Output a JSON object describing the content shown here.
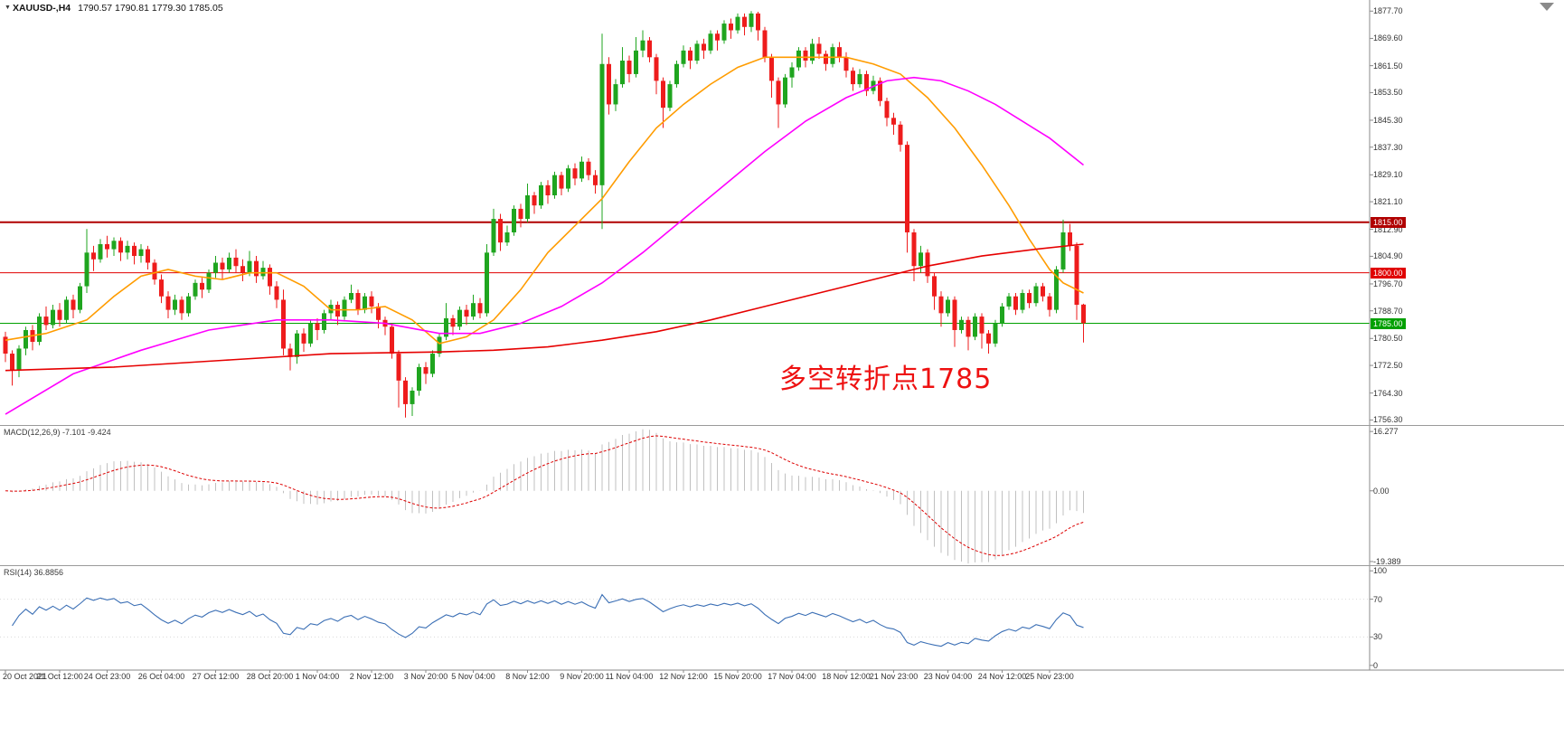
{
  "header": {
    "symbol": "XAUUSD-,H4",
    "quote": "1790.57 1790.81 1779.30 1785.05"
  },
  "chart_data": {
    "type": "candlestick",
    "symbol": "XAUUSD-",
    "timeframe": "H4",
    "last_quote": {
      "open": 1790.57,
      "high": 1790.81,
      "low": 1779.3,
      "close": 1785.05
    },
    "colors": {
      "up": "#1fa51f",
      "down": "#ee1c1c",
      "background": "#ffffff",
      "axis": "#808080"
    },
    "price_axis": {
      "range": [
        1754.8,
        1881.0
      ],
      "ticks": [
        "1877.70",
        "1869.60",
        "1861.50",
        "1853.50",
        "1845.30",
        "1837.30",
        "1829.10",
        "1821.10",
        "1812.90",
        "1804.90",
        "1796.70",
        "1788.70",
        "1780.50",
        "1772.50",
        "1764.30",
        "1756.30"
      ]
    },
    "time_axis": {
      "labels": [
        "20 Oct 2021",
        "21 Oct 12:00",
        "24 Oct 23:00",
        "26 Oct 04:00",
        "27 Oct 12:00",
        "28 Oct 20:00",
        "1 Nov 04:00",
        "2 Nov 12:00",
        "3 Nov 20:00",
        "5 Nov 04:00",
        "8 Nov 12:00",
        "9 Nov 20:00",
        "11 Nov 04:00",
        "12 Nov 12:00",
        "15 Nov 20:00",
        "17 Nov 04:00",
        "18 Nov 12:00",
        "21 Nov 23:00",
        "23 Nov 04:00",
        "24 Nov 12:00",
        "25 Nov 23:00"
      ],
      "indices": [
        0,
        8,
        15,
        23,
        31,
        39,
        46,
        54,
        62,
        69,
        77,
        85,
        92,
        100,
        108,
        116,
        124,
        131,
        139,
        147,
        154
      ]
    },
    "hlines": [
      {
        "price": 1815.0,
        "label": "1815.00",
        "color": "#b00000",
        "width": 2
      },
      {
        "price": 1800.0,
        "label": "1800.00",
        "color": "#e00000",
        "width": 1
      },
      {
        "price": 1785.0,
        "label": "1785.00",
        "color": "#00a000",
        "width": 1
      }
    ],
    "annotation": {
      "text": "多空转折点1785",
      "color": "#ee1111"
    },
    "moving_averages": [
      {
        "name": "ma-fast-orange",
        "color": "#ff9c00",
        "points": [
          [
            0,
            1780
          ],
          [
            6,
            1782
          ],
          [
            12,
            1786
          ],
          [
            16,
            1793
          ],
          [
            20,
            1799
          ],
          [
            24,
            1801
          ],
          [
            28,
            1799
          ],
          [
            32,
            1798
          ],
          [
            36,
            1800
          ],
          [
            40,
            1800
          ],
          [
            44,
            1796
          ],
          [
            48,
            1789
          ],
          [
            52,
            1789
          ],
          [
            56,
            1790
          ],
          [
            60,
            1786
          ],
          [
            64,
            1779
          ],
          [
            68,
            1781
          ],
          [
            72,
            1786
          ],
          [
            76,
            1795
          ],
          [
            80,
            1806
          ],
          [
            84,
            1814
          ],
          [
            88,
            1822
          ],
          [
            92,
            1833
          ],
          [
            96,
            1843
          ],
          [
            100,
            1850
          ],
          [
            104,
            1856
          ],
          [
            108,
            1861
          ],
          [
            112,
            1864
          ],
          [
            120,
            1864
          ],
          [
            124,
            1864
          ],
          [
            128,
            1862
          ],
          [
            132,
            1859
          ],
          [
            136,
            1852
          ],
          [
            140,
            1843
          ],
          [
            144,
            1832
          ],
          [
            148,
            1820
          ],
          [
            151,
            1810
          ],
          [
            154,
            1801
          ],
          [
            156,
            1797
          ],
          [
            159,
            1794
          ]
        ]
      },
      {
        "name": "ma-mid-magenta",
        "color": "#ff00ff",
        "points": [
          [
            0,
            1758
          ],
          [
            10,
            1770
          ],
          [
            20,
            1777
          ],
          [
            30,
            1783
          ],
          [
            40,
            1786
          ],
          [
            48,
            1786
          ],
          [
            56,
            1785
          ],
          [
            64,
            1782
          ],
          [
            70,
            1782
          ],
          [
            76,
            1785
          ],
          [
            82,
            1790
          ],
          [
            88,
            1797
          ],
          [
            94,
            1806
          ],
          [
            100,
            1816
          ],
          [
            106,
            1826
          ],
          [
            112,
            1836
          ],
          [
            118,
            1845
          ],
          [
            124,
            1852
          ],
          [
            130,
            1857
          ],
          [
            134,
            1858
          ],
          [
            138,
            1857
          ],
          [
            142,
            1854
          ],
          [
            146,
            1850
          ],
          [
            150,
            1845
          ],
          [
            154,
            1840
          ],
          [
            159,
            1832
          ]
        ]
      },
      {
        "name": "ma-slow-red",
        "color": "#e60000",
        "points": [
          [
            0,
            1771
          ],
          [
            16,
            1772
          ],
          [
            32,
            1774
          ],
          [
            48,
            1776
          ],
          [
            64,
            1776.5
          ],
          [
            72,
            1777
          ],
          [
            80,
            1778
          ],
          [
            88,
            1780
          ],
          [
            96,
            1782.5
          ],
          [
            104,
            1786
          ],
          [
            112,
            1790
          ],
          [
            120,
            1794
          ],
          [
            128,
            1798
          ],
          [
            136,
            1802
          ],
          [
            144,
            1805
          ],
          [
            152,
            1807
          ],
          [
            159,
            1808.5
          ]
        ]
      }
    ],
    "indicators": {
      "macd": {
        "label": "MACD(12,26,9)",
        "values_label": "-7.101 -9.424",
        "fast": 12,
        "slow": 26,
        "signal": 9,
        "axis_ticks": [
          "16.277",
          "0.00",
          "-19.389"
        ],
        "range": [
          -20.4,
          17.8
        ],
        "histogram_color": "#c0c0c0",
        "signal_color": "#dd0000"
      },
      "rsi": {
        "label": "RSI(14)",
        "value_label": "36.8856",
        "period": 14,
        "axis_ticks": [
          "100",
          "70",
          "30",
          "0"
        ],
        "levels": [
          70,
          30
        ],
        "range": [
          0,
          100
        ],
        "color": "#3b6fb5"
      }
    },
    "candles": [
      [
        1781,
        1782.5,
        1773.5,
        1776
      ],
      [
        1776,
        1777,
        1766.5,
        1771
      ],
      [
        1771,
        1778.5,
        1769,
        1777.5
      ],
      [
        1777.5,
        1784,
        1775.5,
        1783
      ],
      [
        1783,
        1784.5,
        1777,
        1779.5
      ],
      [
        1779.5,
        1788,
        1778.5,
        1787
      ],
      [
        1787,
        1790,
        1783,
        1784.5
      ],
      [
        1784.5,
        1790.5,
        1783.5,
        1789
      ],
      [
        1789,
        1791,
        1784,
        1786
      ],
      [
        1786,
        1793,
        1785,
        1792
      ],
      [
        1792,
        1793.5,
        1786.5,
        1789
      ],
      [
        1789,
        1797,
        1788,
        1796
      ],
      [
        1796,
        1813,
        1794,
        1806
      ],
      [
        1806,
        1808,
        1800.5,
        1804
      ],
      [
        1804,
        1810,
        1803,
        1808.5
      ],
      [
        1808.5,
        1811,
        1804.5,
        1807
      ],
      [
        1807,
        1810.5,
        1805,
        1809.5
      ],
      [
        1809.5,
        1810.5,
        1803.5,
        1806
      ],
      [
        1806,
        1809.5,
        1804,
        1808
      ],
      [
        1808,
        1809,
        1802.5,
        1805
      ],
      [
        1805,
        1808.5,
        1803,
        1807
      ],
      [
        1807,
        1808,
        1801,
        1803
      ],
      [
        1803,
        1804,
        1796.5,
        1798
      ],
      [
        1798,
        1799.5,
        1791,
        1793
      ],
      [
        1793,
        1794.5,
        1786.5,
        1789
      ],
      [
        1789,
        1793.5,
        1787.5,
        1792
      ],
      [
        1792,
        1793,
        1786,
        1788
      ],
      [
        1788,
        1794,
        1787,
        1793
      ],
      [
        1793,
        1798,
        1792,
        1797
      ],
      [
        1797,
        1798.5,
        1792.5,
        1795
      ],
      [
        1795,
        1801,
        1794,
        1800
      ],
      [
        1800,
        1805,
        1798.5,
        1803
      ],
      [
        1803,
        1804.5,
        1798,
        1801
      ],
      [
        1801,
        1806,
        1800,
        1804.5
      ],
      [
        1804.5,
        1807,
        1800,
        1802
      ],
      [
        1802,
        1804,
        1797.5,
        1800
      ],
      [
        1800,
        1806.5,
        1799,
        1803.5
      ],
      [
        1803.5,
        1805,
        1797,
        1799
      ],
      [
        1799,
        1803.5,
        1798,
        1801.5
      ],
      [
        1801.5,
        1802.5,
        1793.5,
        1796
      ],
      [
        1796,
        1797.5,
        1789.5,
        1792
      ],
      [
        1792,
        1795,
        1775.5,
        1777.5
      ],
      [
        1777.5,
        1779,
        1771,
        1775
      ],
      [
        1775,
        1783,
        1773,
        1782
      ],
      [
        1782,
        1783.5,
        1776.5,
        1779
      ],
      [
        1779,
        1786,
        1778,
        1785
      ],
      [
        1785,
        1786.5,
        1780,
        1783
      ],
      [
        1783,
        1789,
        1782,
        1788
      ],
      [
        1788,
        1792,
        1786,
        1790.5
      ],
      [
        1790.5,
        1791.5,
        1784.5,
        1787
      ],
      [
        1787,
        1793,
        1786,
        1792
      ],
      [
        1792,
        1796.5,
        1791,
        1794
      ],
      [
        1794,
        1795,
        1787.5,
        1789
      ],
      [
        1789,
        1794,
        1788,
        1793
      ],
      [
        1793,
        1794.5,
        1788,
        1790
      ],
      [
        1790,
        1791,
        1783.5,
        1786
      ],
      [
        1786,
        1787,
        1781.5,
        1784
      ],
      [
        1784,
        1785,
        1774.5,
        1776
      ],
      [
        1776,
        1777,
        1760,
        1768
      ],
      [
        1768,
        1769,
        1757,
        1761
      ],
      [
        1761,
        1766,
        1757.5,
        1765
      ],
      [
        1765,
        1773,
        1763.5,
        1772
      ],
      [
        1772,
        1773.5,
        1767,
        1770
      ],
      [
        1770,
        1777,
        1769,
        1776
      ],
      [
        1776,
        1782,
        1775,
        1781
      ],
      [
        1781,
        1791,
        1780,
        1786.5
      ],
      [
        1786.5,
        1787.5,
        1781.5,
        1784
      ],
      [
        1784,
        1790,
        1783,
        1789
      ],
      [
        1789,
        1790.5,
        1784.5,
        1787
      ],
      [
        1787,
        1793.5,
        1786,
        1791
      ],
      [
        1791,
        1792.5,
        1786.5,
        1788
      ],
      [
        1788,
        1808.5,
        1787,
        1806
      ],
      [
        1806,
        1819,
        1805,
        1816
      ],
      [
        1816,
        1817.5,
        1806.5,
        1809
      ],
      [
        1809,
        1814,
        1808,
        1812
      ],
      [
        1812,
        1820,
        1811,
        1819
      ],
      [
        1819,
        1820.5,
        1813.5,
        1816
      ],
      [
        1816,
        1826.5,
        1815,
        1823
      ],
      [
        1823,
        1824,
        1817.5,
        1820
      ],
      [
        1820,
        1827,
        1819,
        1826
      ],
      [
        1826,
        1827.5,
        1820.5,
        1823
      ],
      [
        1823,
        1830,
        1822,
        1829
      ],
      [
        1829,
        1830,
        1823,
        1825
      ],
      [
        1825,
        1832,
        1824,
        1831
      ],
      [
        1831,
        1832.5,
        1826,
        1828
      ],
      [
        1828,
        1834.5,
        1827,
        1833
      ],
      [
        1833,
        1834,
        1827.5,
        1829
      ],
      [
        1829,
        1830.5,
        1823.5,
        1826
      ],
      [
        1826,
        1871,
        1813,
        1862
      ],
      [
        1862,
        1864,
        1847,
        1850
      ],
      [
        1850,
        1857.5,
        1848,
        1856
      ],
      [
        1856,
        1867,
        1855,
        1863
      ],
      [
        1863,
        1864.5,
        1856.5,
        1859
      ],
      [
        1859,
        1870,
        1858,
        1866
      ],
      [
        1866,
        1872,
        1864,
        1869
      ],
      [
        1869,
        1870,
        1862.5,
        1864
      ],
      [
        1864,
        1865,
        1853,
        1857
      ],
      [
        1857,
        1858,
        1843,
        1849
      ],
      [
        1849,
        1857,
        1848,
        1856
      ],
      [
        1856,
        1863,
        1855,
        1862
      ],
      [
        1862,
        1867.5,
        1861,
        1866
      ],
      [
        1866,
        1867,
        1860.5,
        1863
      ],
      [
        1863,
        1869,
        1862,
        1868
      ],
      [
        1868,
        1869.5,
        1863.5,
        1866
      ],
      [
        1866,
        1872,
        1865,
        1871
      ],
      [
        1871,
        1872,
        1866,
        1869
      ],
      [
        1869,
        1875,
        1868,
        1874
      ],
      [
        1874,
        1875.5,
        1869.5,
        1872
      ],
      [
        1872,
        1877,
        1871,
        1876
      ],
      [
        1876,
        1877,
        1870.5,
        1873
      ],
      [
        1873,
        1877.7,
        1871.5,
        1877
      ],
      [
        1877,
        1877.5,
        1869,
        1872
      ],
      [
        1872,
        1873,
        1862.5,
        1864
      ],
      [
        1864,
        1865,
        1852,
        1857
      ],
      [
        1857,
        1858,
        1843,
        1850
      ],
      [
        1850,
        1859,
        1849,
        1858
      ],
      [
        1858,
        1862.5,
        1855,
        1861
      ],
      [
        1861,
        1867,
        1860,
        1866
      ],
      [
        1866,
        1867,
        1861,
        1863
      ],
      [
        1863,
        1869.5,
        1862,
        1868
      ],
      [
        1868,
        1870,
        1863.5,
        1865
      ],
      [
        1865,
        1866,
        1860,
        1862
      ],
      [
        1862,
        1868,
        1861,
        1867
      ],
      [
        1867,
        1868.5,
        1862.5,
        1864
      ],
      [
        1864,
        1865.5,
        1858,
        1860
      ],
      [
        1860,
        1861,
        1854,
        1856
      ],
      [
        1856,
        1860.5,
        1855,
        1859
      ],
      [
        1859,
        1860,
        1852.5,
        1854
      ],
      [
        1854,
        1858.5,
        1853,
        1857
      ],
      [
        1857,
        1858,
        1849.5,
        1851
      ],
      [
        1851,
        1852,
        1843.5,
        1846
      ],
      [
        1846,
        1847.5,
        1841,
        1844
      ],
      [
        1844,
        1845,
        1836,
        1838
      ],
      [
        1838,
        1839,
        1806,
        1812
      ],
      [
        1812,
        1813,
        1797.5,
        1802
      ],
      [
        1802,
        1808,
        1800,
        1806
      ],
      [
        1806,
        1807,
        1797,
        1799
      ],
      [
        1799,
        1800,
        1789,
        1793
      ],
      [
        1793,
        1794.5,
        1784,
        1788
      ],
      [
        1788,
        1793,
        1787,
        1792
      ],
      [
        1792,
        1793,
        1778,
        1783
      ],
      [
        1783,
        1787,
        1782,
        1786
      ],
      [
        1786,
        1787,
        1777,
        1781
      ],
      [
        1781,
        1788,
        1780,
        1787
      ],
      [
        1787,
        1788,
        1777.5,
        1782
      ],
      [
        1782,
        1783,
        1776,
        1779
      ],
      [
        1779,
        1786,
        1778,
        1785
      ],
      [
        1785,
        1791,
        1784,
        1790
      ],
      [
        1790,
        1794,
        1789,
        1793
      ],
      [
        1793,
        1794,
        1787.5,
        1789
      ],
      [
        1789,
        1795,
        1788,
        1794
      ],
      [
        1794,
        1795,
        1789.5,
        1791
      ],
      [
        1791,
        1797,
        1790,
        1796
      ],
      [
        1796,
        1797,
        1791.5,
        1793
      ],
      [
        1793,
        1794,
        1787,
        1789
      ],
      [
        1789,
        1802,
        1788,
        1801
      ],
      [
        1801,
        1815.8,
        1800,
        1812
      ],
      [
        1812,
        1814.5,
        1806.5,
        1808
      ],
      [
        1808,
        1809,
        1786,
        1790.5
      ],
      [
        1790.57,
        1790.81,
        1779.3,
        1785.05
      ]
    ]
  }
}
